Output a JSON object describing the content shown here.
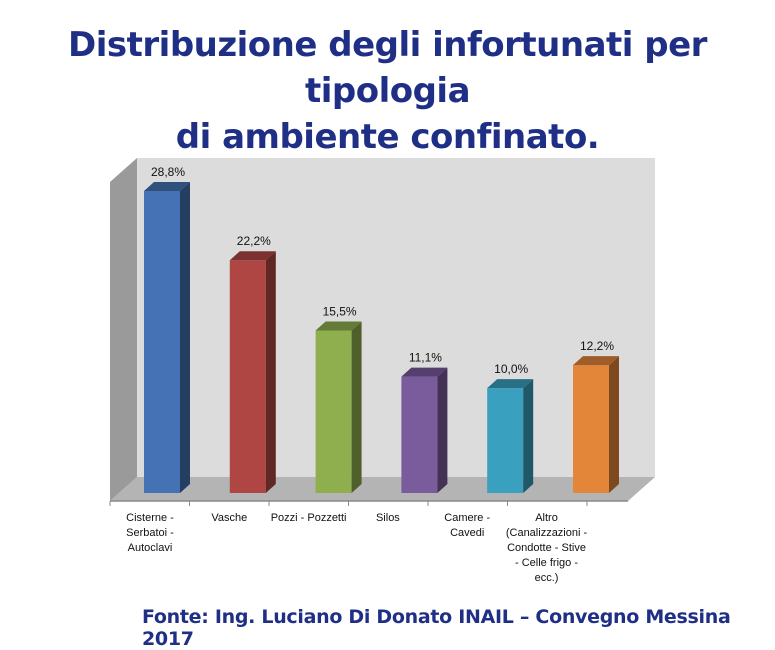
{
  "title_line1": "Distribuzione degli infortunati per tipologia",
  "title_line2": "di ambiente confinato.",
  "source": "Fonte: Ing. Luciano Di Donato INAIL – Convegno Messina  2017",
  "chart_data": {
    "type": "bar",
    "title": "Distribuzione degli infortunati per tipologia di ambiente confinato.",
    "categories": [
      [
        "Cisterne -",
        "Serbatoi -",
        "Autoclavi"
      ],
      [
        "Vasche"
      ],
      [
        "Pozzi - Pozzetti"
      ],
      [
        "Silos"
      ],
      [
        "Camere -",
        "Cavedi"
      ],
      [
        "Altro",
        "(Canalizzazioni -",
        "Condotte - Stive",
        "- Celle frigo -",
        "ecc.)"
      ]
    ],
    "values": [
      28.8,
      22.2,
      15.5,
      11.1,
      10.0,
      12.2
    ],
    "data_labels": [
      "28,8%",
      "22,2%",
      "15,5%",
      "11,1%",
      "10,0%",
      "12,2%"
    ],
    "colors": [
      "#4472b4",
      "#b04644",
      "#8fae4e",
      "#7a5b9c",
      "#3aa0bf",
      "#e3863a"
    ],
    "ylim": [
      0,
      28.8
    ],
    "grid": false,
    "style": "3d-column"
  }
}
